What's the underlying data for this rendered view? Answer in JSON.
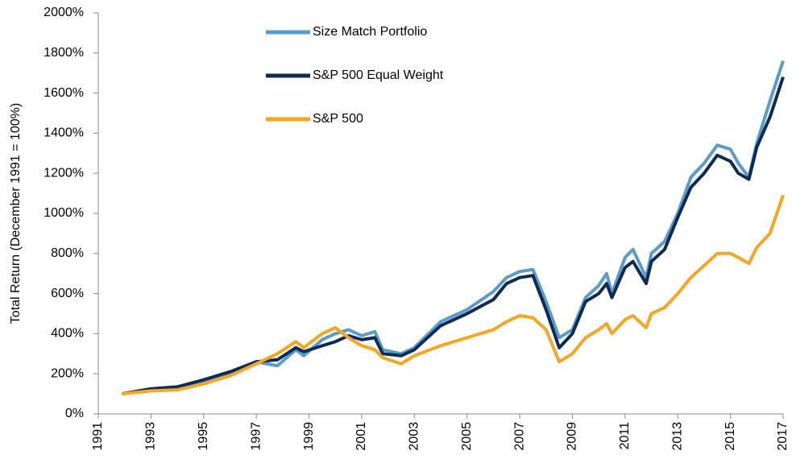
{
  "chart_data": {
    "type": "line",
    "y_label": "Total Return (December 1991 = 100%)",
    "xlim": [
      1991,
      2017
    ],
    "xticks": [
      1991,
      1993,
      1995,
      1997,
      1999,
      2001,
      2003,
      2005,
      2007,
      2009,
      2011,
      2013,
      2015,
      2017
    ],
    "ylim": [
      0,
      2000
    ],
    "yticks": [
      {
        "value": 0,
        "label": "0%"
      },
      {
        "value": 200,
        "label": "200%"
      },
      {
        "value": 400,
        "label": "400%"
      },
      {
        "value": 600,
        "label": "600%"
      },
      {
        "value": 800,
        "label": "800%"
      },
      {
        "value": 1000,
        "label": "1000%"
      },
      {
        "value": 1200,
        "label": "1200%"
      },
      {
        "value": 1400,
        "label": "1400%"
      },
      {
        "value": 1600,
        "label": "1600%"
      },
      {
        "value": 1800,
        "label": "1800%"
      },
      {
        "value": 2000,
        "label": "2000%"
      }
    ],
    "legend": "upper left",
    "x": [
      1991.9,
      1993,
      1994,
      1995,
      1996,
      1997,
      1997.8,
      1998.5,
      1998.8,
      1999.5,
      2000,
      2000.5,
      2001,
      2001.5,
      2001.8,
      2002.5,
      2003,
      2004,
      2005,
      2006,
      2006.5,
      2007,
      2007.5,
      2008,
      2008.5,
      2009,
      2009.5,
      2010,
      2010.3,
      2010.5,
      2011,
      2011.3,
      2011.8,
      2012,
      2012.5,
      2013,
      2013.5,
      2014,
      2014.5,
      2015,
      2015.3,
      2015.7,
      2016,
      2016.5,
      2017
    ],
    "series": [
      {
        "name": "Size Match Portfolio",
        "color": "#5b9bc8",
        "values": [
          100,
          120,
          130,
          160,
          200,
          260,
          240,
          320,
          290,
          370,
          400,
          420,
          390,
          410,
          320,
          300,
          330,
          460,
          520,
          610,
          680,
          710,
          720,
          560,
          380,
          420,
          580,
          640,
          700,
          600,
          780,
          820,
          680,
          800,
          860,
          1000,
          1180,
          1250,
          1340,
          1320,
          1250,
          1180,
          1350,
          1560,
          1760
        ]
      },
      {
        "name": "S&P 500 Equal Weight",
        "color": "#0e2a56",
        "values": [
          100,
          125,
          135,
          170,
          210,
          260,
          270,
          330,
          310,
          340,
          360,
          390,
          370,
          380,
          300,
          290,
          320,
          440,
          500,
          570,
          650,
          680,
          690,
          520,
          330,
          400,
          560,
          600,
          650,
          580,
          730,
          760,
          650,
          760,
          820,
          980,
          1130,
          1200,
          1290,
          1260,
          1200,
          1170,
          1330,
          1480,
          1680
        ]
      },
      {
        "name": "S&P 500",
        "color": "#f5a623",
        "values": [
          100,
          115,
          120,
          150,
          190,
          250,
          300,
          360,
          330,
          400,
          430,
          380,
          340,
          320,
          280,
          250,
          290,
          340,
          380,
          420,
          460,
          490,
          480,
          420,
          260,
          300,
          380,
          420,
          450,
          400,
          470,
          490,
          430,
          500,
          530,
          600,
          680,
          740,
          800,
          800,
          780,
          750,
          830,
          900,
          1090
        ]
      }
    ]
  }
}
